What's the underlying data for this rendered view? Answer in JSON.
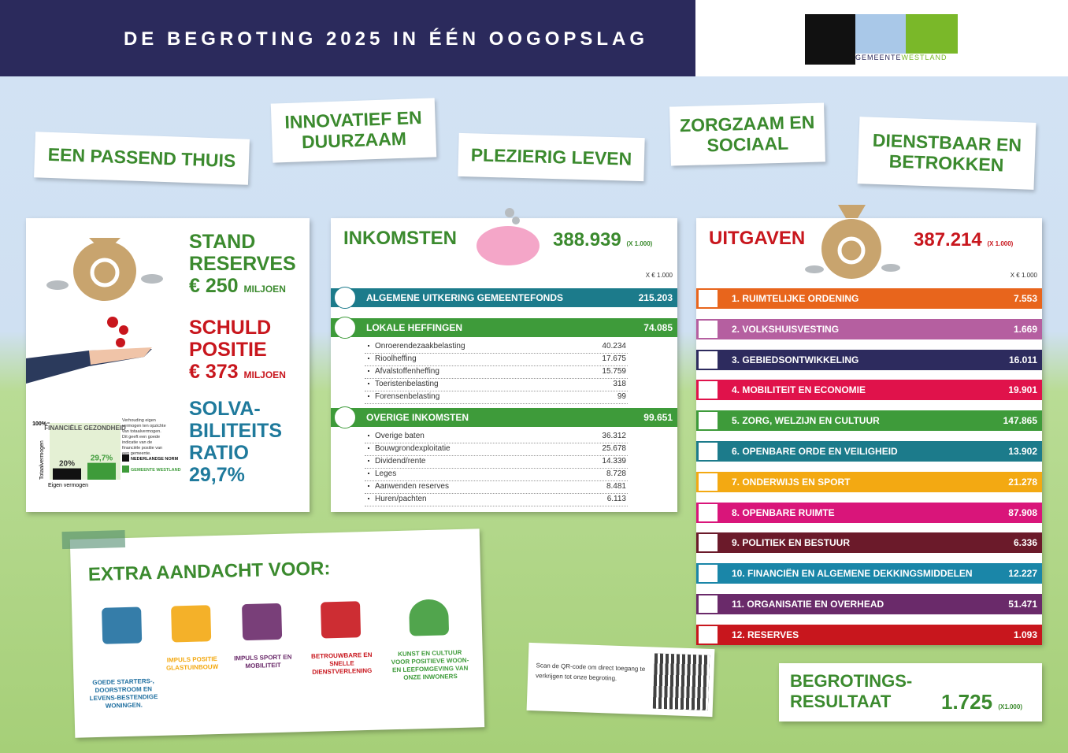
{
  "header": {
    "title": "DE BEGROTING 2025 IN ÉÉN OOGOPSLAG",
    "logo_text": "GEMEENTE",
    "logo_text2": "WESTLAND"
  },
  "themes": [
    "EEN PASSEND THUIS",
    "INNOVATIEF EN DUURZAAM",
    "PLEZIERIG LEVEN",
    "ZORGZAAM EN SOCIAAL",
    "DIENSTBAAR EN BETROKKEN"
  ],
  "left_panel": {
    "reserves": {
      "label": [
        "STAND",
        "RESERVES"
      ],
      "amount": "€ 250",
      "unit": "MILJOEN"
    },
    "debt": {
      "label": [
        "SCHULD",
        "POSITIE"
      ],
      "amount": "€ 373",
      "unit": "MILJOEN"
    },
    "solvency": {
      "label": [
        "SOLVA-",
        "BILITEITS",
        "RATIO"
      ],
      "value": "29,7%"
    },
    "mini_chart": {
      "title": "FINANCIËLE GEZONDHEID",
      "y_label": "Totaalvermogen",
      "x_label": "Eigen vermogen",
      "ylim": [
        0,
        100
      ],
      "yticks": [
        {
          "value": 100,
          "label": "100%"
        }
      ],
      "bars": [
        {
          "name": "NEDERLANDSE NORM",
          "value": 20,
          "label": "20%",
          "color": "#111111"
        },
        {
          "name": "GEMEENTE WESTLAND",
          "value": 29.7,
          "label": "29,7%",
          "color": "#3e9b3a"
        }
      ],
      "note": "Verhouding eigen vermogen ten opzichte van totaalvermogen. Dit geeft een goede indicatie van de financiële positie van een gemeente."
    }
  },
  "income": {
    "title": "INKOMSTEN",
    "total": "388.939",
    "unit": "(X 1.000)",
    "col_unit": "X € 1.000",
    "groups": [
      {
        "name": "ALGEMENE UITKERING GEMEENTEFONDS",
        "total": "215.203",
        "color": "#1c7b8b",
        "items": []
      },
      {
        "name": "LOKALE HEFFINGEN",
        "total": "74.085",
        "color": "#3e9b3a",
        "items": [
          {
            "name": "Onroerendezaakbelasting",
            "value": "40.234"
          },
          {
            "name": "Rioolheffing",
            "value": "17.675"
          },
          {
            "name": "Afvalstoffenheffing",
            "value": "15.759"
          },
          {
            "name": "Toeristenbelasting",
            "value": "318"
          },
          {
            "name": "Forensenbelasting",
            "value": "99"
          }
        ]
      },
      {
        "name": "OVERIGE INKOMSTEN",
        "total": "99.651",
        "color": "#3e9b3a",
        "items": [
          {
            "name": "Overige baten",
            "value": "36.312"
          },
          {
            "name": "Bouwgrondexploitatie",
            "value": "25.678"
          },
          {
            "name": "Dividend/rente",
            "value": "14.339"
          },
          {
            "name": "Leges",
            "value": "8.728"
          },
          {
            "name": "Aanwenden reserves",
            "value": "8.481"
          },
          {
            "name": "Huren/pachten",
            "value": "6.113"
          }
        ]
      }
    ]
  },
  "expenses": {
    "title": "UITGAVEN",
    "total": "387.214",
    "unit": "(X 1.000)",
    "col_unit": "X € 1.000",
    "items": [
      {
        "name": "1. RUIMTELIJKE ORDENING",
        "value": "7.553",
        "color": "#e8651c"
      },
      {
        "name": "2. VOLKSHUISVESTING",
        "value": "1.669",
        "color": "#b55fa0"
      },
      {
        "name": "3. GEBIEDSONTWIKKELING",
        "value": "16.011",
        "color": "#2d2b5e"
      },
      {
        "name": "4. MOBILITEIT EN ECONOMIE",
        "value": "19.901",
        "color": "#e0124b"
      },
      {
        "name": "5. ZORG, WELZIJN EN CULTUUR",
        "value": "147.865",
        "color": "#3e9b3a"
      },
      {
        "name": "6. OPENBARE ORDE EN VEILIGHEID",
        "value": "13.902",
        "color": "#1c7b8b"
      },
      {
        "name": "7. ONDERWIJS EN SPORT",
        "value": "21.278",
        "color": "#f3a912"
      },
      {
        "name": "8. OPENBARE RUIMTE",
        "value": "87.908",
        "color": "#d9157a"
      },
      {
        "name": "9. POLITIEK EN BESTUUR",
        "value": "6.336",
        "color": "#6b1a2a"
      },
      {
        "name": "10. FINANCIËN EN ALGEMENE DEKKINGSMIDDELEN",
        "value": "12.227",
        "color": "#1a86a8"
      },
      {
        "name": "11. ORGANISATIE EN OVERHEAD",
        "value": "51.471",
        "color": "#6a2a6a"
      },
      {
        "name": "12. RESERVES",
        "value": "1.093",
        "color": "#c8161d"
      }
    ]
  },
  "extra": {
    "title": "EXTRA AANDACHT VOOR:",
    "items": [
      {
        "text": "GOEDE STARTERS-, DOORSTROOM EN LEVENS-BESTENDIGE WONINGEN.",
        "color": "#1f6fa0"
      },
      {
        "text": "IMPULS POSITIE GLASTUINBOUW",
        "color": "#f3a912"
      },
      {
        "text": "IMPULS SPORT EN MOBILITEIT",
        "color": "#6a2a6a"
      },
      {
        "text": "BETROUWBARE EN SNELLE DIENSTVERLENING",
        "color": "#c8161d"
      },
      {
        "text": "KUNST EN CULTUUR VOOR POSITIEVE WOON- EN LEEFOMGEVING VAN ONZE INWONERS",
        "color": "#3e9b3a"
      }
    ]
  },
  "qr": {
    "text": "Scan de QR-code om direct toegang te verkrijgen tot onze begroting."
  },
  "result": {
    "label": [
      "BEGROTINGS-",
      "RESULTAAT"
    ],
    "value": "1.725",
    "unit": "(X1.000)"
  }
}
